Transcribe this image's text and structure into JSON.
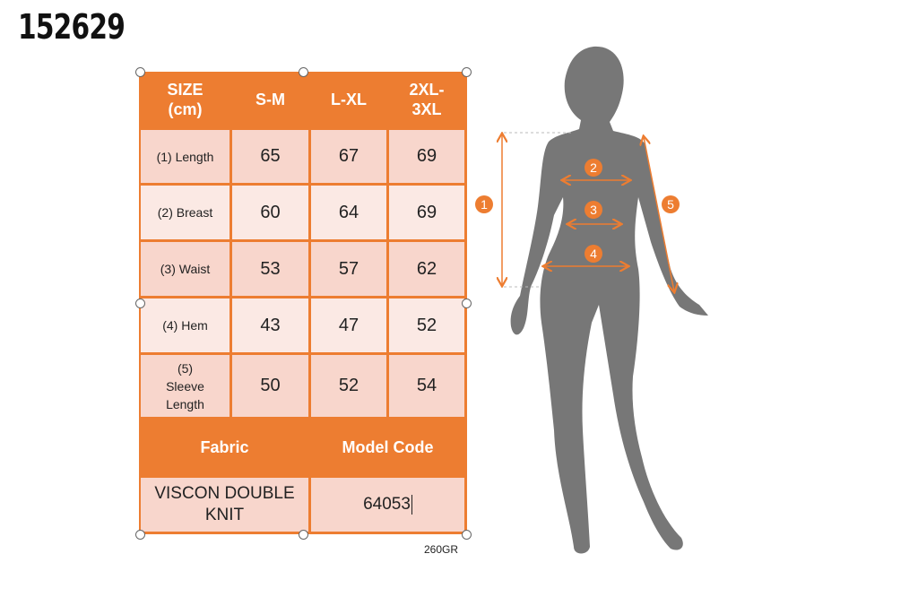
{
  "product_code": "152629",
  "size_table": {
    "headers": [
      "SIZE (cm)",
      "S-M",
      "L-XL",
      "2XL-3XL"
    ],
    "rows": [
      {
        "label": "(1) Length",
        "values": [
          "65",
          "67",
          "69"
        ]
      },
      {
        "label": "(2) Breast",
        "values": [
          "60",
          "64",
          "69"
        ]
      },
      {
        "label": "(3) Waist",
        "values": [
          "53",
          "57",
          "62"
        ]
      },
      {
        "label": "(4) Hem",
        "values": [
          "43",
          "47",
          "52"
        ]
      },
      {
        "label": "(5) Sleeve Length",
        "values": [
          "50",
          "52",
          "54"
        ]
      }
    ]
  },
  "info_table": {
    "headers": [
      "Fabric",
      "Model Code"
    ],
    "values": [
      "VISCON DOUBLE KNIT",
      "64053"
    ]
  },
  "weight_note": "260GR",
  "markers": [
    "1",
    "2",
    "3",
    "4",
    "5"
  ],
  "colors": {
    "accent": "#ed7d31",
    "row_dark": "#f8d6cc",
    "row_light": "#fbe9e4",
    "silhouette": "#777777"
  }
}
